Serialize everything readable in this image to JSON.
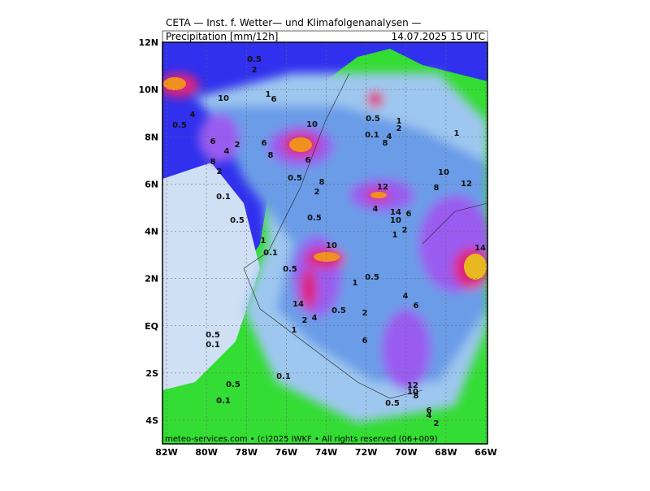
{
  "header": {
    "title": "CETA — Inst. f. Wetter— und Klimafolgenanalysen —",
    "parameter": "Precipitation [mm/12h]",
    "valid_time": "14.07.2025 15 UTC"
  },
  "map": {
    "lat_labels": [
      "12N",
      "10N",
      "8N",
      "6N",
      "4N",
      "2N",
      "EQ",
      "2S",
      "4S"
    ],
    "lon_labels": [
      "82W",
      "80W",
      "78W",
      "76W",
      "74W",
      "72W",
      "70W",
      "68W",
      "66W"
    ],
    "contour_labels": [
      "0.5",
      "2",
      "10",
      "4",
      "0.5",
      "1",
      "6",
      "10",
      "6",
      "8",
      "4",
      "2",
      "6",
      "8",
      "2",
      "0.1",
      "0.5",
      "6",
      "0.5",
      "8",
      "2",
      "0.5",
      "1",
      "0.1",
      "10",
      "0.5",
      "14",
      "2",
      "4",
      "1",
      "0.5",
      "2",
      "6",
      "0.1",
      "0.5",
      "0.1",
      "0.5",
      "0.1",
      "12",
      "4",
      "14",
      "10",
      "6",
      "2",
      "1",
      "0.5",
      "1",
      "4",
      "6",
      "12",
      "10",
      "8",
      "6",
      "4",
      "2",
      "0.5",
      "10",
      "8",
      "12",
      "14",
      "1",
      "0.1",
      "4",
      "8",
      "1",
      "2",
      "0.5"
    ]
  },
  "footer": "meteo-services.com • (c)2025 IWKF • All rights reserved (06+009)"
}
